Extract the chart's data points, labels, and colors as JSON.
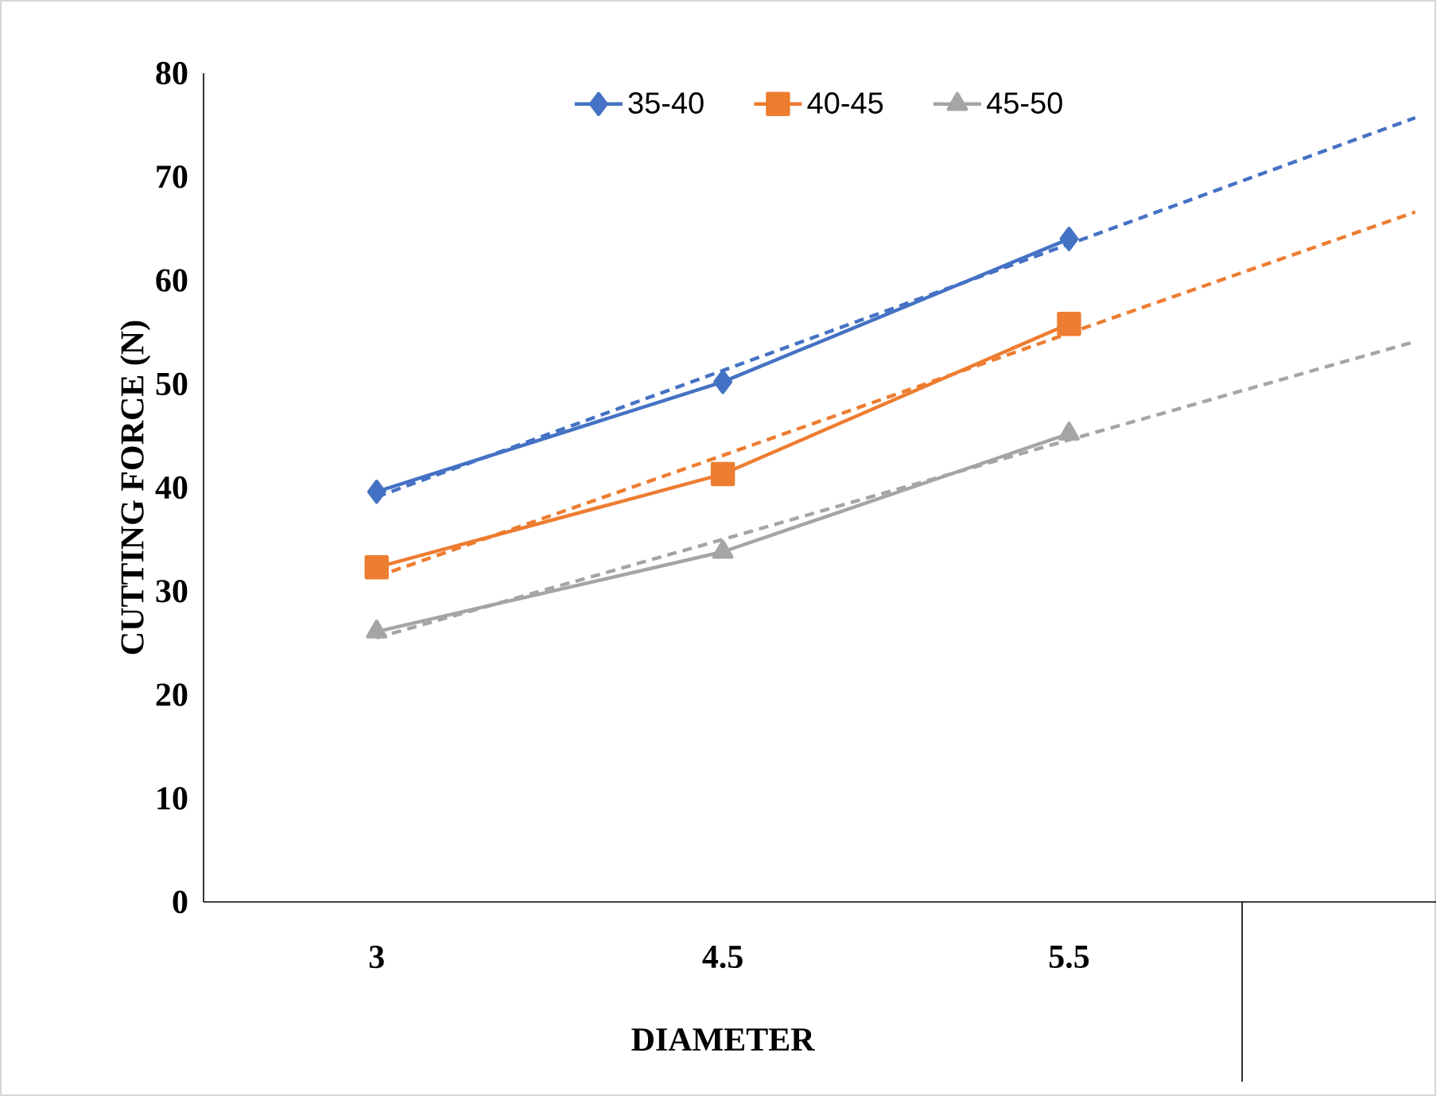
{
  "chart_data": {
    "type": "line",
    "xlabel": "DIAMETER",
    "ylabel": "CUTTING FORCE (N)",
    "categories": [
      "3",
      "4.5",
      "5.5",
      null
    ],
    "series": [
      {
        "name": "35-40",
        "color": "#4472c4",
        "marker": "diamond",
        "values": [
          39.6,
          50.2,
          64.0,
          null
        ]
      },
      {
        "name": "40-45",
        "color": "#ed7d31",
        "marker": "square",
        "values": [
          32.3,
          41.3,
          55.8,
          null
        ]
      },
      {
        "name": "45-50",
        "color": "#a5a5a5",
        "marker": "triangle",
        "values": [
          26.1,
          33.8,
          45.2,
          null
        ]
      },
      {
        "color": "#4472c4",
        "marker": "none",
        "line_style": "dashed",
        "values": [
          39.1,
          51.3,
          63.5,
          75.7
        ]
      },
      {
        "color": "#ed7d31",
        "marker": "none",
        "line_style": "dashed",
        "values": [
          31.4,
          43.1,
          54.9,
          66.6
        ]
      },
      {
        "color": "#a5a5a5",
        "marker": "none",
        "line_style": "dashed",
        "values": [
          25.5,
          35.0,
          44.6,
          54.1
        ]
      }
    ],
    "ylim": [
      0,
      80
    ],
    "yticks": [
      0,
      10,
      20,
      30,
      40,
      50,
      60,
      70,
      80
    ],
    "grid": false,
    "legend": "top"
  }
}
